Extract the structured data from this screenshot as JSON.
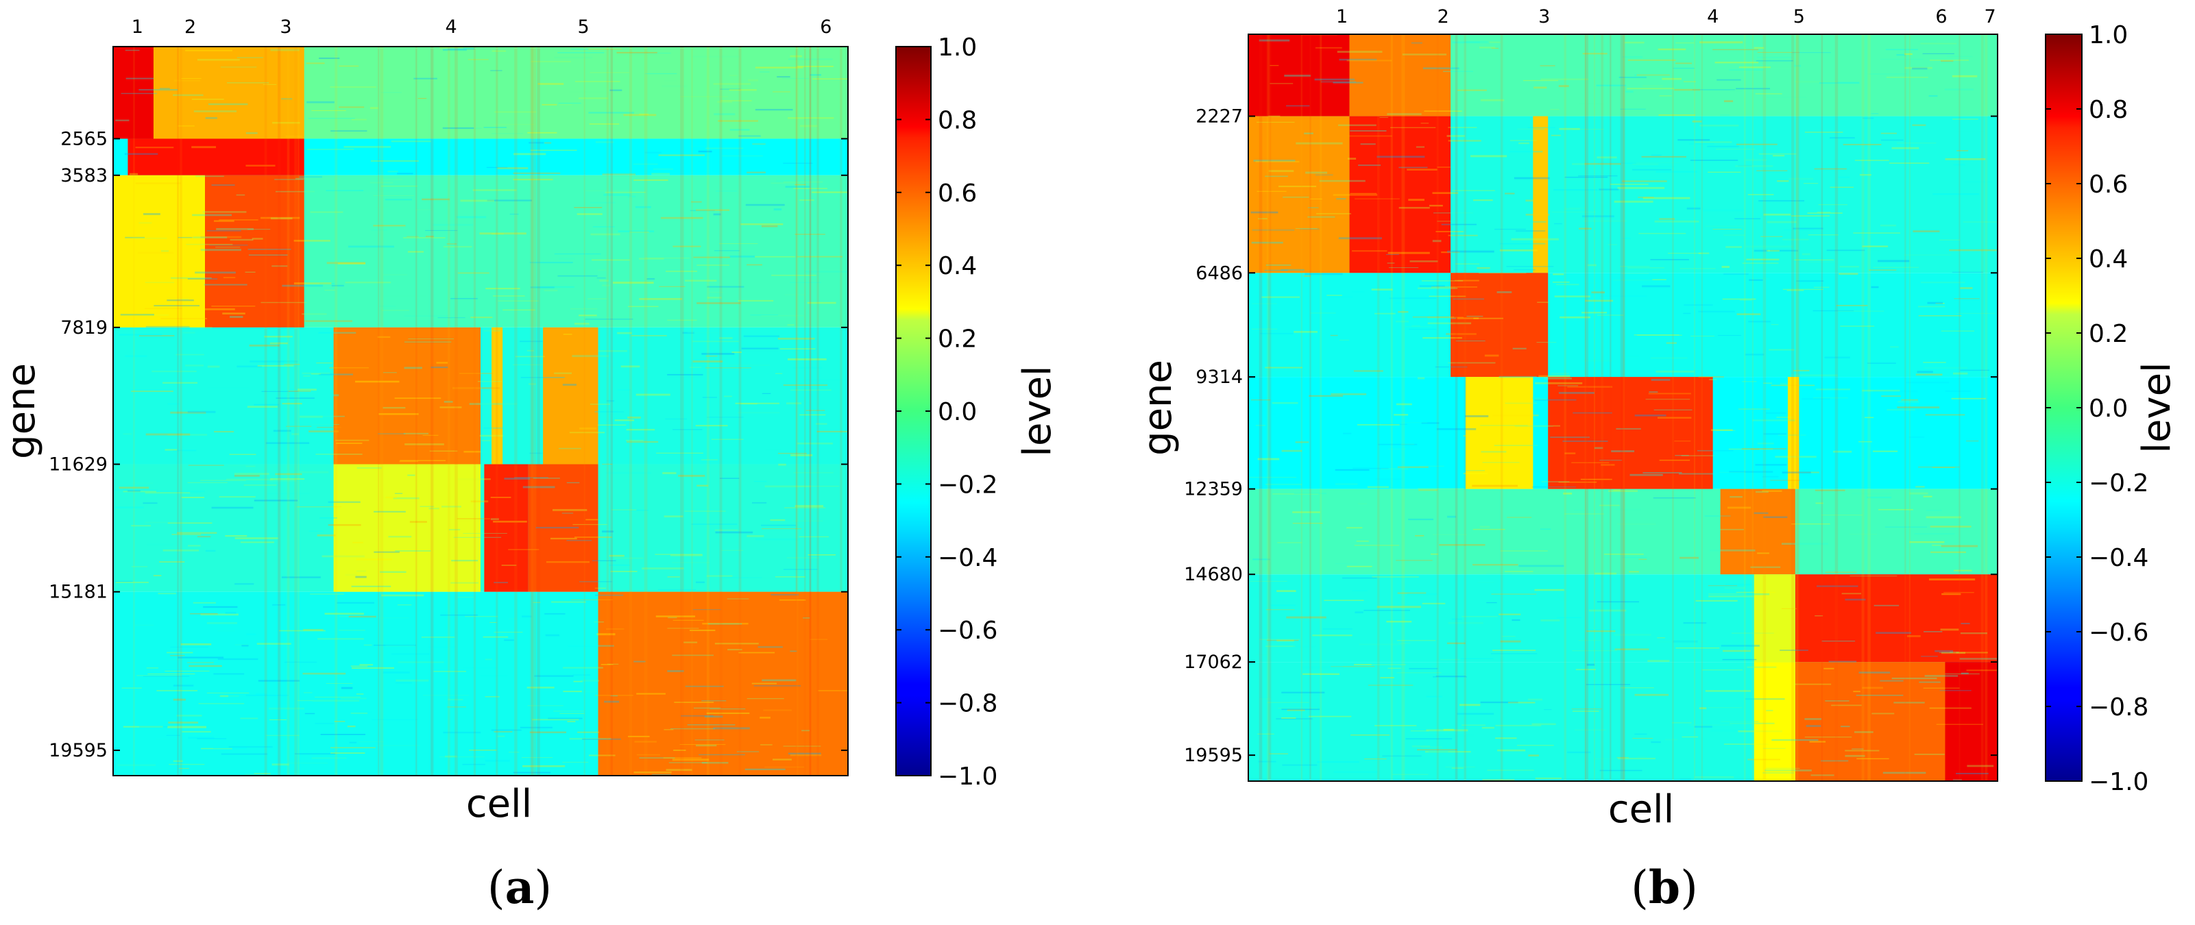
{
  "chart_data": [
    {
      "panel": "a",
      "type": "heatmap",
      "xlabel": "cell",
      "ylabel": "gene",
      "colorbar_label": "level",
      "color_range": [
        -1.0,
        1.0
      ],
      "colorbar_ticks": [
        "1.0",
        "0.8",
        "0.6",
        "0.4",
        "0.2",
        "0.0",
        "−0.2",
        "−0.4",
        "−0.6",
        "−0.8",
        "−1.0"
      ],
      "gene_total": 20300,
      "cell_total": 100,
      "ytick_genes": [
        2565,
        3583,
        7819,
        11629,
        15181,
        19595
      ],
      "ytick_labels": [
        "2565",
        "3583",
        "7819",
        "11629",
        "15181",
        "19595"
      ],
      "cluster_labels": [
        "1",
        "2",
        "3",
        "4",
        "5",
        "6"
      ],
      "cluster_label_cells": [
        3.3,
        10.5,
        23.5,
        46,
        64,
        97
      ],
      "gene_blocks": [
        {
          "start": 0,
          "end": 2565,
          "bg": -0.05
        },
        {
          "start": 2565,
          "end": 3583,
          "bg": -0.25
        },
        {
          "start": 3583,
          "end": 7819,
          "bg": -0.12
        },
        {
          "start": 7819,
          "end": 11629,
          "bg": -0.2
        },
        {
          "start": 11629,
          "end": 15181,
          "bg": -0.18
        },
        {
          "start": 15181,
          "end": 20300,
          "bg": -0.22
        }
      ],
      "high_regions": [
        {
          "g0": 0,
          "g1": 2565,
          "c0": 0,
          "c1": 5.5,
          "v": 0.78
        },
        {
          "g0": 0,
          "g1": 2565,
          "c0": 5.5,
          "c1": 26,
          "v": 0.4
        },
        {
          "g0": 2565,
          "g1": 3583,
          "c0": 2,
          "c1": 26,
          "v": 0.72
        },
        {
          "g0": 3583,
          "g1": 7819,
          "c0": 0,
          "c1": 12.5,
          "v": 0.28
        },
        {
          "g0": 3583,
          "g1": 7819,
          "c0": 12.5,
          "c1": 26,
          "v": 0.6
        },
        {
          "g0": 7819,
          "g1": 11629,
          "c0": 30,
          "c1": 50,
          "v": 0.5
        },
        {
          "g0": 7819,
          "g1": 11629,
          "c0": 51.5,
          "c1": 53,
          "v": 0.35
        },
        {
          "g0": 7819,
          "g1": 11629,
          "c0": 58.5,
          "c1": 66,
          "v": 0.42
        },
        {
          "g0": 11629,
          "g1": 15181,
          "c0": 30,
          "c1": 50,
          "v": 0.2
        },
        {
          "g0": 11629,
          "g1": 15181,
          "c0": 50.5,
          "c1": 56.5,
          "v": 0.68
        },
        {
          "g0": 11629,
          "g1": 15181,
          "c0": 56.5,
          "c1": 66,
          "v": 0.6
        },
        {
          "g0": 15181,
          "g1": 20300,
          "c0": 66,
          "c1": 100,
          "v": 0.52
        }
      ]
    },
    {
      "panel": "b",
      "type": "heatmap",
      "xlabel": "cell",
      "ylabel": "gene",
      "colorbar_label": "level",
      "color_range": [
        -1.0,
        1.0
      ],
      "colorbar_ticks": [
        "1.0",
        "0.8",
        "0.6",
        "0.4",
        "0.2",
        "0.0",
        "−0.2",
        "−0.4",
        "−0.6",
        "−0.8",
        "−1.0"
      ],
      "gene_total": 20300,
      "cell_total": 100,
      "ytick_genes": [
        2227,
        6486,
        9314,
        12359,
        14680,
        17062,
        19595
      ],
      "ytick_labels": [
        "2227",
        "6486",
        "9314",
        "12359",
        "14680",
        "17062",
        "19595"
      ],
      "cluster_labels": [
        "1",
        "2",
        "3",
        "4",
        "5",
        "6",
        "7"
      ],
      "cluster_label_cells": [
        12.5,
        26,
        39.5,
        62,
        73.5,
        92.5,
        99
      ],
      "gene_blocks": [
        {
          "start": 0,
          "end": 2227,
          "bg": -0.1
        },
        {
          "start": 2227,
          "end": 6486,
          "bg": -0.2
        },
        {
          "start": 6486,
          "end": 9314,
          "bg": -0.22
        },
        {
          "start": 9314,
          "end": 12359,
          "bg": -0.25
        },
        {
          "start": 12359,
          "end": 14680,
          "bg": -0.12
        },
        {
          "start": 14680,
          "end": 17062,
          "bg": -0.2
        },
        {
          "start": 17062,
          "end": 20300,
          "bg": -0.2
        }
      ],
      "high_regions": [
        {
          "g0": 0,
          "g1": 2227,
          "c0": 0,
          "c1": 13.5,
          "v": 0.78
        },
        {
          "g0": 0,
          "g1": 2227,
          "c0": 13.5,
          "c1": 27,
          "v": 0.5
        },
        {
          "g0": 2227,
          "g1": 6486,
          "c0": 0,
          "c1": 13.5,
          "v": 0.45
        },
        {
          "g0": 2227,
          "g1": 6486,
          "c0": 13.5,
          "c1": 27,
          "v": 0.7
        },
        {
          "g0": 2227,
          "g1": 6486,
          "c0": 38,
          "c1": 40,
          "v": 0.35
        },
        {
          "g0": 6486,
          "g1": 9314,
          "c0": 27,
          "c1": 40,
          "v": 0.62
        },
        {
          "g0": 9314,
          "g1": 12359,
          "c0": 29,
          "c1": 38,
          "v": 0.28
        },
        {
          "g0": 9314,
          "g1": 12359,
          "c0": 40,
          "c1": 62,
          "v": 0.65
        },
        {
          "g0": 9314,
          "g1": 12359,
          "c0": 72,
          "c1": 73.5,
          "v": 0.3
        },
        {
          "g0": 12359,
          "g1": 14680,
          "c0": 63,
          "c1": 73,
          "v": 0.5
        },
        {
          "g0": 14680,
          "g1": 17062,
          "c0": 67.5,
          "c1": 73,
          "v": 0.2
        },
        {
          "g0": 14680,
          "g1": 17062,
          "c0": 73,
          "c1": 100,
          "v": 0.68
        },
        {
          "g0": 17062,
          "g1": 20300,
          "c0": 67.5,
          "c1": 73,
          "v": 0.25
        },
        {
          "g0": 17062,
          "g1": 20300,
          "c0": 73,
          "c1": 93,
          "v": 0.55
        },
        {
          "g0": 17062,
          "g1": 20300,
          "c0": 93,
          "c1": 100,
          "v": 0.78
        }
      ]
    }
  ],
  "captions": {
    "a": {
      "open": "(",
      "letter": "a",
      "close": ")"
    },
    "b": {
      "open": "(",
      "letter": "b",
      "close": ")"
    }
  }
}
